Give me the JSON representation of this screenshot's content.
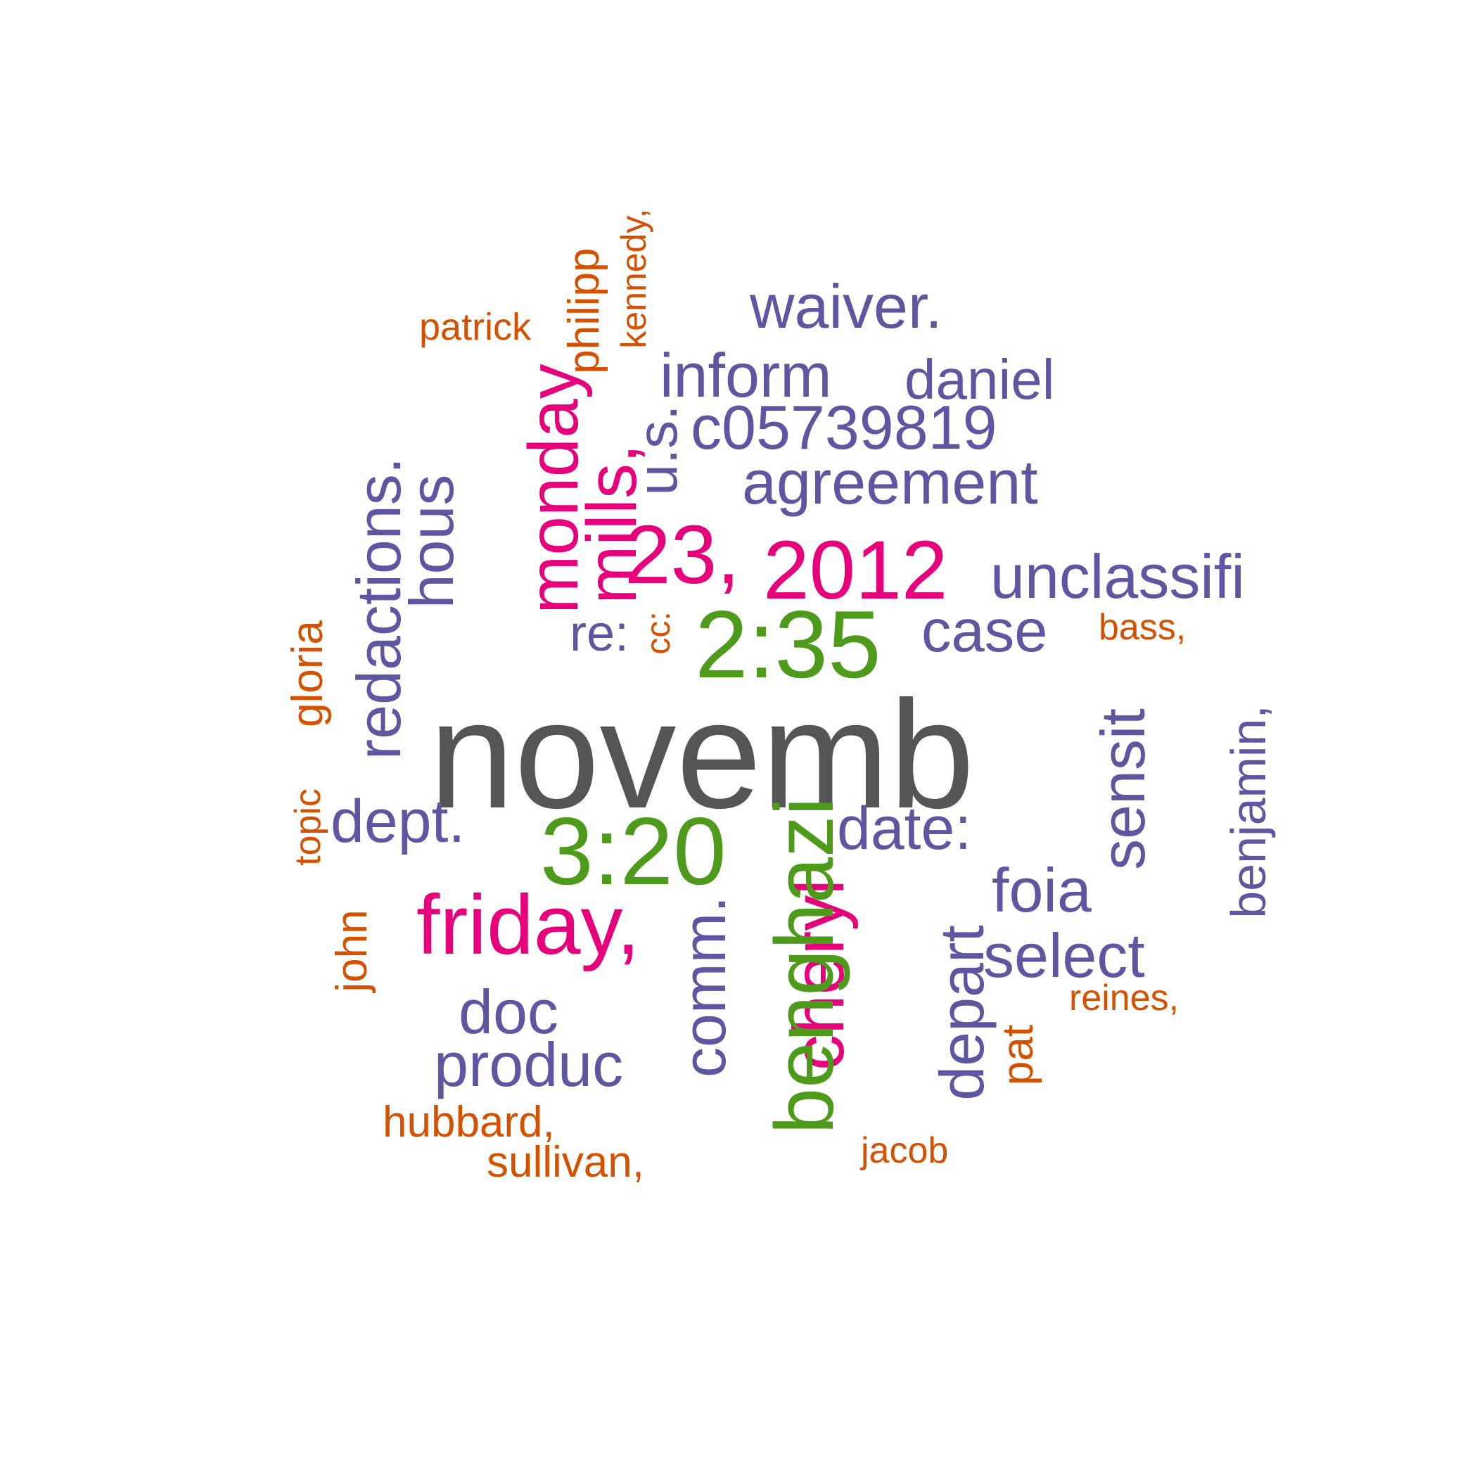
{
  "colors": {
    "dominant": "#555555",
    "magenta": "#e7007b",
    "green": "#4e9a1b",
    "purple": "#5f56a2",
    "orange": "#d45100",
    "background": "#ffffff"
  },
  "words": {
    "novemb": "novemb",
    "n2012": "2012",
    "n23": "23,",
    "t235": "2:35",
    "t320": "3:20",
    "friday": "friday,",
    "benghazi": "benghazi",
    "cheryl": "cheryl",
    "depart": "depart",
    "comm": "comm.",
    "monday": "monday",
    "mills": "mills,",
    "us": "u.s.",
    "redactions": "redactions.",
    "hous": "hous",
    "waiver": "waiver.",
    "inform": "inform",
    "daniel": "daniel",
    "c057": "c05739819",
    "agreement": "agreement",
    "unclassifi": "unclassifi",
    "case": "case",
    "re": "re:",
    "dept": "dept.",
    "date": "date:",
    "foia": "foia",
    "select": "select",
    "doc": "doc",
    "produc": "produc",
    "sensit": "sensit",
    "benjamin": "benjamin,",
    "patrick": "patrick",
    "philipp": "philipp",
    "kennedy": "kennedy,",
    "cc": "cc:",
    "gloria": "gloria",
    "topic": "topic",
    "john": "john",
    "bass": "bass,",
    "reines": "reines,",
    "pat": "pat",
    "hubbard": "hubbard,",
    "sullivan": "sullivan,",
    "jacob": "jacob"
  }
}
